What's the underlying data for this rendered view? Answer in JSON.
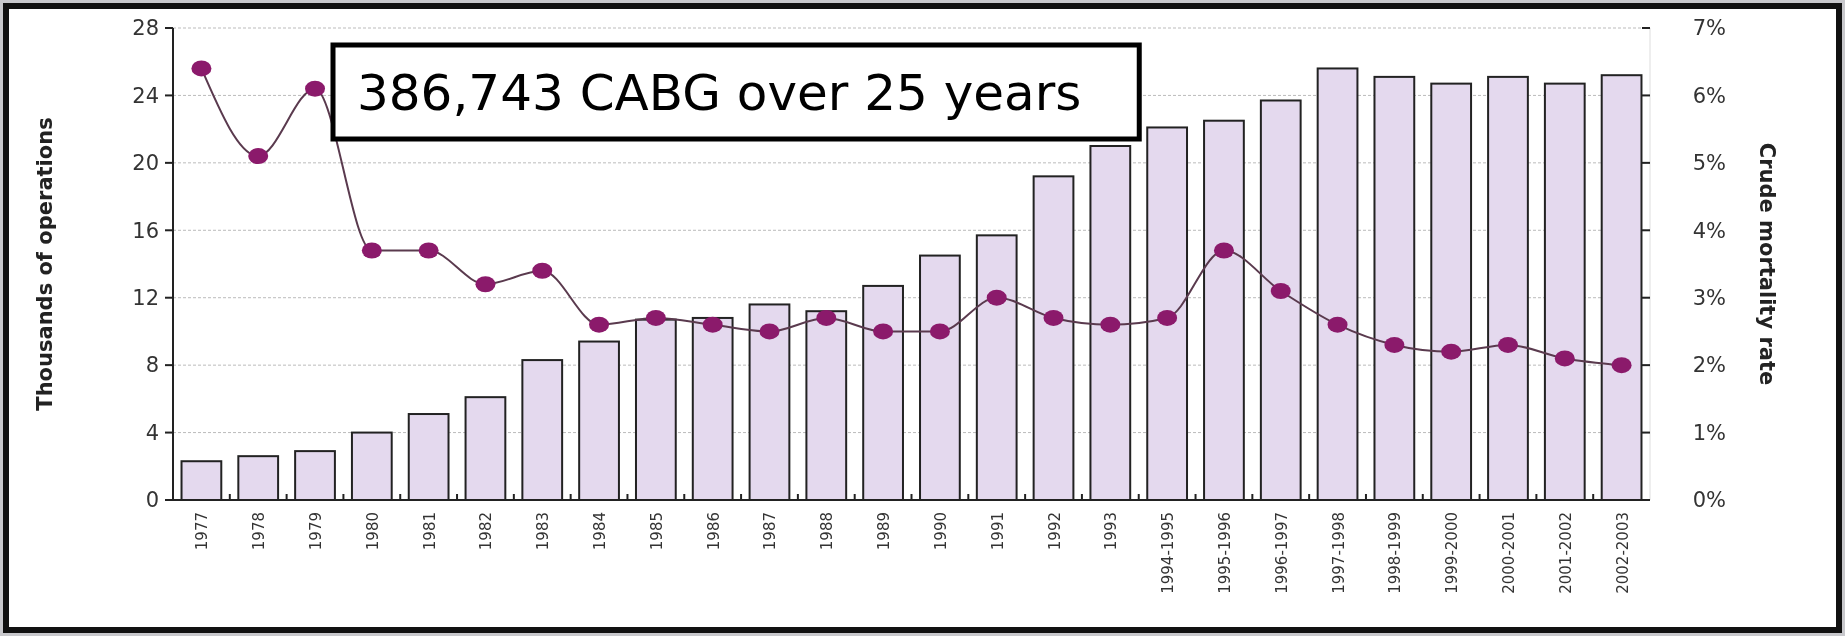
{
  "chart_data": {
    "type": "bar",
    "ylabel": "Thousands of operations",
    "y2label": "Crude mortality rate",
    "annotations": [
      "386,743 CABG over 25 years"
    ],
    "categories": [
      "1977",
      "1978",
      "1979",
      "1980",
      "1981",
      "1982",
      "1983",
      "1984",
      "1985",
      "1986",
      "1987",
      "1988",
      "1989",
      "1990",
      "1991",
      "1992",
      "1993",
      "1994-1995",
      "1995-1996",
      "1996-1997",
      "1997-1998",
      "1998-1999",
      "1999-2000",
      "2000-2001",
      "2001-2002",
      "2002-2003"
    ],
    "series": [
      {
        "color": "#e4d9ee",
        "values": [
          2.3,
          2.6,
          2.9,
          4.0,
          5.1,
          6.1,
          8.3,
          9.4,
          10.7,
          10.8,
          11.6,
          11.2,
          12.7,
          14.5,
          15.7,
          19.2,
          21.0,
          22.1,
          22.5,
          23.7,
          25.6,
          25.1,
          24.7,
          25.1,
          24.7,
          25.2
        ]
      },
      {
        "type": "line",
        "axis": "y2",
        "color": "#8b1a6b",
        "values": [
          6.4,
          5.1,
          6.1,
          3.7,
          3.7,
          3.2,
          3.4,
          2.6,
          2.7,
          2.6,
          2.5,
          2.7,
          2.5,
          2.5,
          3.0,
          2.7,
          2.6,
          2.7,
          3.7,
          3.1,
          2.6,
          2.3,
          2.2,
          2.3,
          2.1,
          2.0
        ]
      }
    ],
    "ylim": [
      0,
      28
    ],
    "yticks": [
      0,
      4,
      8,
      12,
      16,
      20,
      24,
      28
    ],
    "y2lim": [
      0,
      7
    ],
    "y2ticks": [
      {
        "value": 0,
        "label": "0%"
      },
      {
        "value": 1,
        "label": "1%"
      },
      {
        "value": 2,
        "label": "2%"
      },
      {
        "value": 3,
        "label": "3%"
      },
      {
        "value": 4,
        "label": "4%"
      },
      {
        "value": 5,
        "label": "5%"
      },
      {
        "value": 6,
        "label": "6%"
      },
      {
        "value": 7,
        "label": "7%"
      }
    ],
    "grid": "y",
    "marker": "circle",
    "line_style": "solid"
  }
}
